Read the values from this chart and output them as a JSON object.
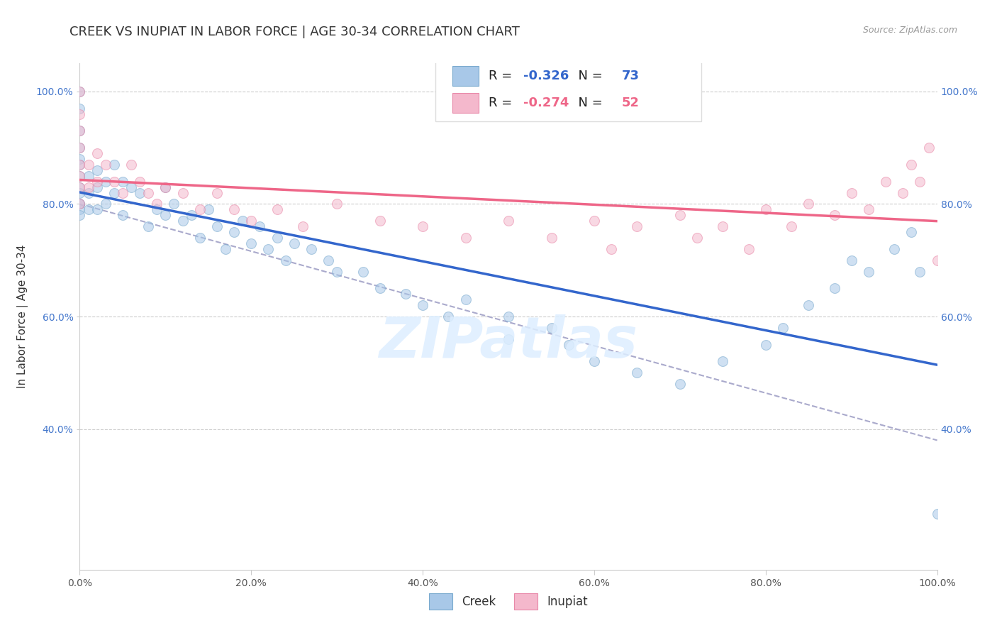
{
  "title": "CREEK VS INUPIAT IN LABOR FORCE | AGE 30-34 CORRELATION CHART",
  "source": "Source: ZipAtlas.com",
  "ylabel": "In Labor Force | Age 30-34",
  "xlim": [
    0.0,
    1.0
  ],
  "ylim": [
    0.15,
    1.05
  ],
  "creek_color": "#a8c8e8",
  "inupiat_color": "#f4b8cc",
  "creek_edge": "#7aaace",
  "inupiat_edge": "#e888a8",
  "trend_creek_color": "#3366cc",
  "trend_inupiat_color": "#ee6688",
  "trend_gray_color": "#aaaacc",
  "R_creek": -0.326,
  "N_creek": 73,
  "R_inupiat": -0.274,
  "N_inupiat": 52,
  "creek_x": [
    0.0,
    0.0,
    0.0,
    0.0,
    0.0,
    0.0,
    0.0,
    0.0,
    0.0,
    0.0,
    0.0,
    0.0,
    0.0,
    0.01,
    0.01,
    0.01,
    0.02,
    0.02,
    0.02,
    0.03,
    0.03,
    0.04,
    0.04,
    0.05,
    0.05,
    0.06,
    0.07,
    0.08,
    0.09,
    0.1,
    0.1,
    0.11,
    0.12,
    0.13,
    0.14,
    0.15,
    0.16,
    0.17,
    0.18,
    0.19,
    0.2,
    0.21,
    0.22,
    0.23,
    0.24,
    0.25,
    0.27,
    0.29,
    0.3,
    0.33,
    0.35,
    0.38,
    0.4,
    0.43,
    0.45,
    0.5,
    0.5,
    0.55,
    0.57,
    0.6,
    0.65,
    0.7,
    0.75,
    0.8,
    0.82,
    0.85,
    0.88,
    0.9,
    0.92,
    0.95,
    0.97,
    0.98,
    1.0
  ],
  "creek_y": [
    1.0,
    0.97,
    0.93,
    0.9,
    0.88,
    0.87,
    0.85,
    0.83,
    0.82,
    0.8,
    0.8,
    0.79,
    0.78,
    0.85,
    0.82,
    0.79,
    0.86,
    0.83,
    0.79,
    0.84,
    0.8,
    0.87,
    0.82,
    0.84,
    0.78,
    0.83,
    0.82,
    0.76,
    0.79,
    0.83,
    0.78,
    0.8,
    0.77,
    0.78,
    0.74,
    0.79,
    0.76,
    0.72,
    0.75,
    0.77,
    0.73,
    0.76,
    0.72,
    0.74,
    0.7,
    0.73,
    0.72,
    0.7,
    0.68,
    0.68,
    0.65,
    0.64,
    0.62,
    0.6,
    0.63,
    0.6,
    0.56,
    0.58,
    0.55,
    0.52,
    0.5,
    0.48,
    0.52,
    0.55,
    0.58,
    0.62,
    0.65,
    0.7,
    0.68,
    0.72,
    0.75,
    0.68,
    0.25
  ],
  "inupiat_x": [
    0.0,
    0.0,
    0.0,
    0.0,
    0.0,
    0.0,
    0.0,
    0.0,
    0.01,
    0.01,
    0.02,
    0.02,
    0.03,
    0.04,
    0.05,
    0.06,
    0.07,
    0.08,
    0.09,
    0.1,
    0.12,
    0.14,
    0.16,
    0.18,
    0.2,
    0.23,
    0.26,
    0.3,
    0.35,
    0.4,
    0.45,
    0.5,
    0.55,
    0.6,
    0.62,
    0.65,
    0.7,
    0.72,
    0.75,
    0.78,
    0.8,
    0.83,
    0.85,
    0.88,
    0.9,
    0.92,
    0.94,
    0.96,
    0.97,
    0.98,
    0.99,
    1.0
  ],
  "inupiat_y": [
    1.0,
    0.96,
    0.93,
    0.9,
    0.87,
    0.85,
    0.83,
    0.8,
    0.87,
    0.83,
    0.89,
    0.84,
    0.87,
    0.84,
    0.82,
    0.87,
    0.84,
    0.82,
    0.8,
    0.83,
    0.82,
    0.79,
    0.82,
    0.79,
    0.77,
    0.79,
    0.76,
    0.8,
    0.77,
    0.76,
    0.74,
    0.77,
    0.74,
    0.77,
    0.72,
    0.76,
    0.78,
    0.74,
    0.76,
    0.72,
    0.79,
    0.76,
    0.8,
    0.78,
    0.82,
    0.79,
    0.84,
    0.82,
    0.87,
    0.84,
    0.9,
    0.7
  ],
  "marker_size": 100,
  "marker_alpha": 0.55,
  "grid_color": "#cccccc",
  "bg_color": "#ffffff",
  "title_fontsize": 13,
  "label_fontsize": 11,
  "tick_fontsize": 10,
  "legend_fontsize": 13,
  "watermark": "ZIPatlas",
  "watermark_color": "#ddeeff",
  "y_tick_vals": [
    0.4,
    0.6,
    0.8,
    1.0
  ],
  "y_tick_labels": [
    "40.0%",
    "60.0%",
    "80.0%",
    "100.0%"
  ],
  "x_tick_vals": [
    0.0,
    0.2,
    0.4,
    0.6,
    0.8,
    1.0
  ],
  "x_tick_labels": [
    "0.0%",
    "20.0%",
    "40.0%",
    "60.0%",
    "80.0%",
    "100.0%"
  ]
}
